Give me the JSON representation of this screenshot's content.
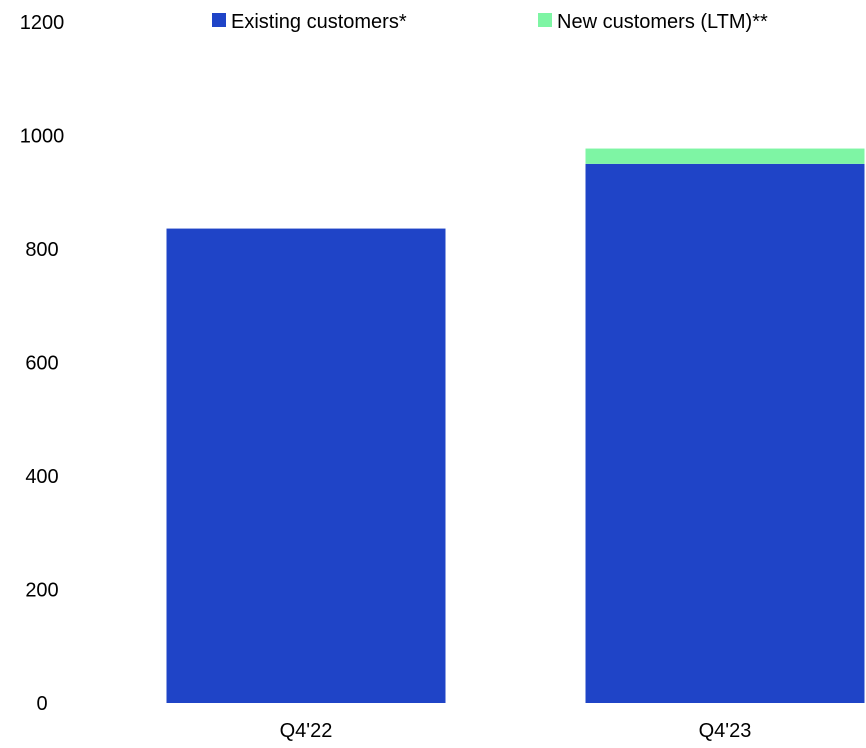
{
  "chart_data": {
    "type": "bar",
    "stacked": true,
    "categories": [
      "Q4'22",
      "Q4'23"
    ],
    "series": [
      {
        "name": "Existing customers*",
        "values": [
          836,
          950
        ],
        "color": "#1f44c7"
      },
      {
        "name": "New customers (LTM)**",
        "values": [
          0,
          27
        ],
        "color": "#7ef5a4"
      }
    ],
    "yticks": [
      "0",
      "200",
      "400",
      "600",
      "800",
      "1000",
      "1200"
    ],
    "ylim": [
      0,
      1200
    ],
    "grid": false,
    "legend_position": "top"
  }
}
